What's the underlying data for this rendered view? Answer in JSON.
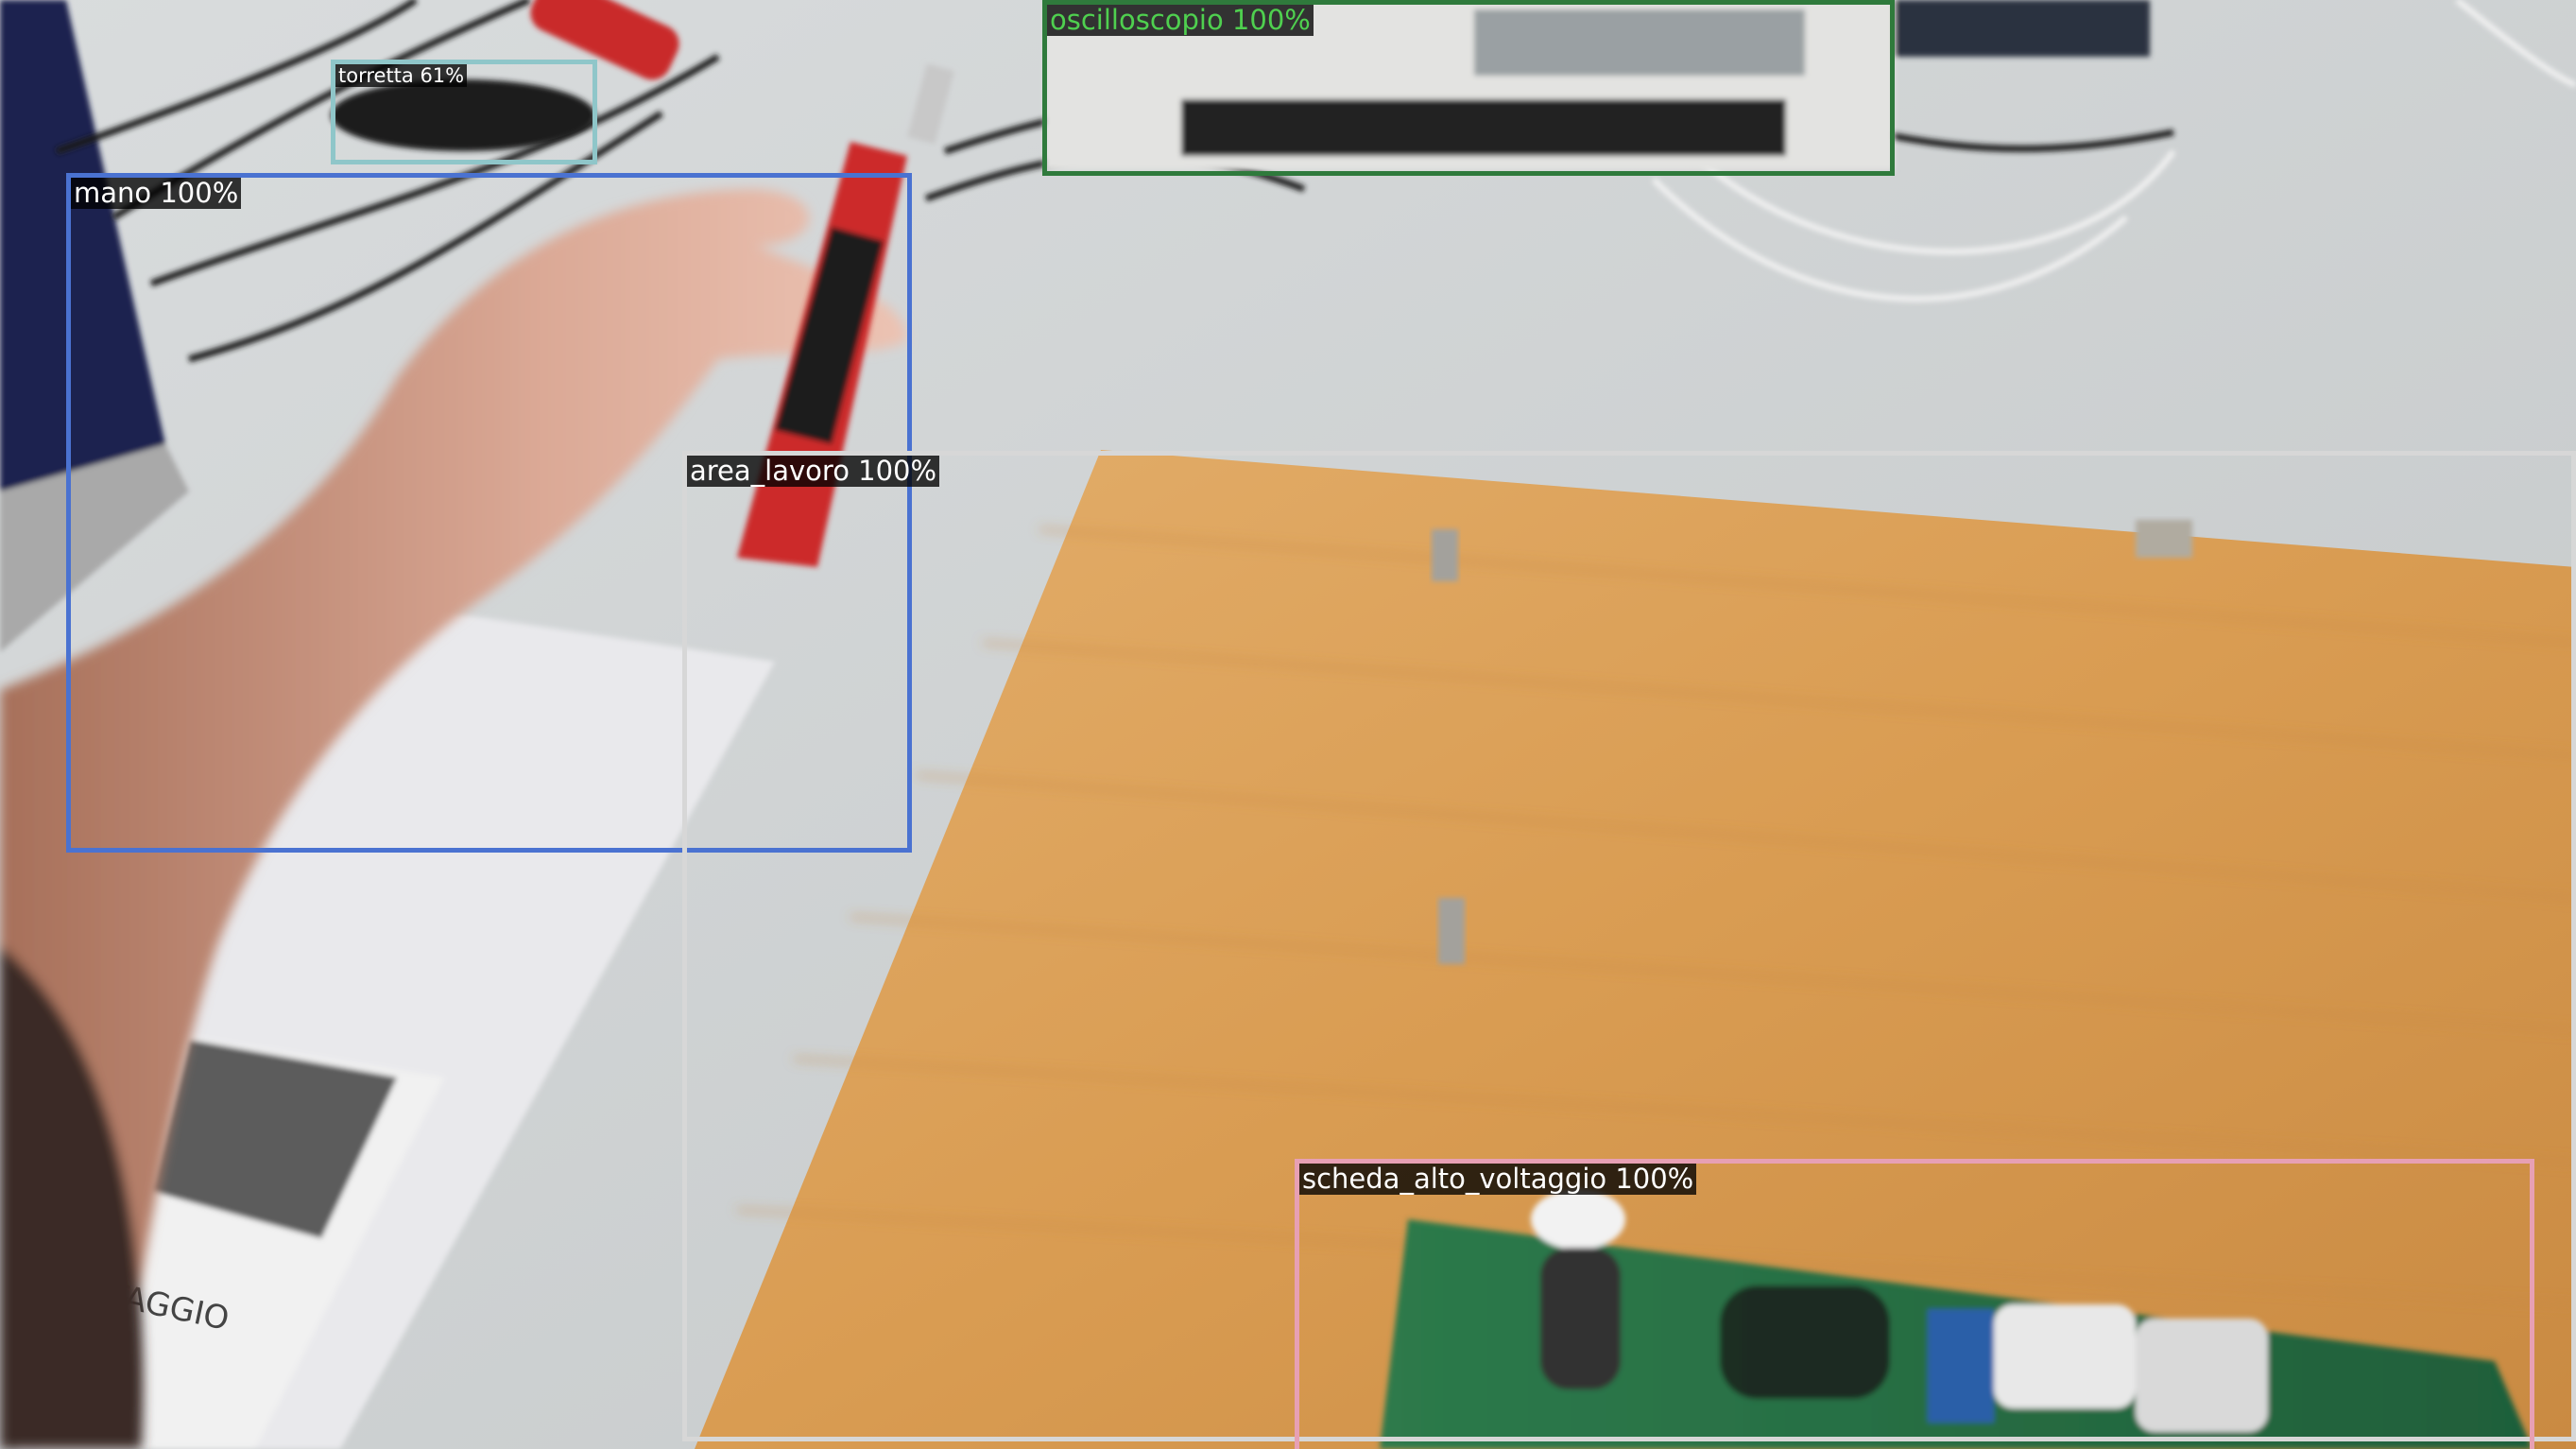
{
  "scene": {
    "description_icon": "photo-workbench-scene"
  },
  "detections": [
    {
      "id": "torretta",
      "label": "torretta 61%",
      "color": "#8fc6c9"
    },
    {
      "id": "mano",
      "label": "mano 100%",
      "color": "#4a72d1"
    },
    {
      "id": "oscilloscopio",
      "label": "oscilloscopio 100%",
      "color": "#2f7a3c",
      "text_color": "#4fd04f"
    },
    {
      "id": "area_lavoro",
      "label": "area_lavoro 100%",
      "color": "#d7d7d7"
    },
    {
      "id": "scheda_alto_voltaggio",
      "label": "scheda_alto_voltaggio 100%",
      "color": "#e7a0b4"
    }
  ],
  "paper_text": {
    "label_fragment": "TAGGIO"
  }
}
